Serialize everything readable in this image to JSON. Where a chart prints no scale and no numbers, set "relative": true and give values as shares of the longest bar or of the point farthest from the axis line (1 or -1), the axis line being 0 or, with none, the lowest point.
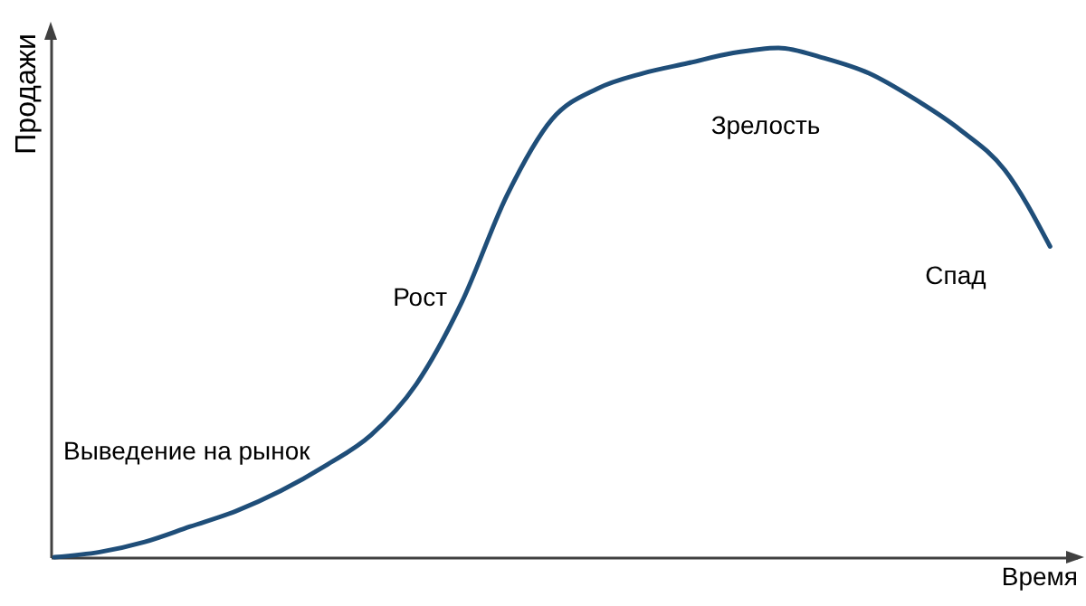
{
  "chart_data": {
    "type": "line",
    "relative": true,
    "xlabel": "Время",
    "ylabel": "Продажи",
    "categories": [
      null,
      null,
      null,
      null,
      null,
      null,
      null,
      null,
      null,
      null,
      null,
      null,
      null,
      null,
      null,
      null,
      null,
      null,
      null,
      null,
      null,
      null,
      null
    ],
    "series": [
      {
        "color": "#1f4e79",
        "values": [
          0,
          0.01,
          0.03,
          0.06,
          0.09,
          0.13,
          0.18,
          0.24,
          0.34,
          0.5,
          0.71,
          0.86,
          0.92,
          0.95,
          0.97,
          0.99,
          1,
          0.98,
          0.95,
          0.9,
          0.84,
          0.76,
          0.61
        ]
      }
    ],
    "annotations": [
      "Выведение на рынок",
      "Рост",
      "Зрелость",
      "Спад"
    ]
  }
}
